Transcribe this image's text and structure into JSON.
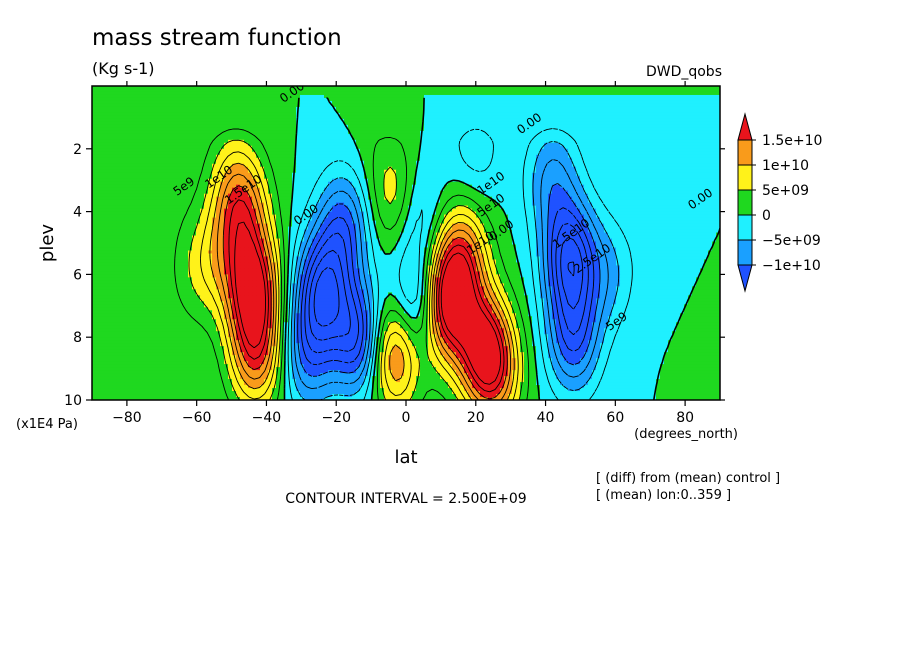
{
  "chart_data": {
    "type": "heatmap",
    "title": "mass stream function",
    "units": "(Kg s-1)",
    "dataset": "DWD_qobs",
    "xlabel": "lat",
    "xunits": "(degrees_north)",
    "ylabel": "plev",
    "yunits": "(x1E4 Pa)",
    "xlim": [
      -90,
      90
    ],
    "ylim": [
      10,
      0
    ],
    "x_ticks": [
      -80,
      -60,
      -40,
      -20,
      0,
      20,
      40,
      60,
      80
    ],
    "x_tick_labels": [
      "−80",
      "−60",
      "−40",
      "−20",
      "0",
      "20",
      "40",
      "60",
      "80"
    ],
    "y_ticks": [
      2,
      4,
      6,
      8,
      10
    ],
    "y_tick_labels": [
      "2",
      "4",
      "6",
      "8",
      "10"
    ],
    "contour_interval_text": "CONTOUR INTERVAL = 2.500E+09",
    "notes": [
      "[ (diff) from (mean) control ]",
      "[ (mean) lon:0..359 ]"
    ],
    "colorbar": {
      "levels": [
        -15000000000.0,
        -10000000000.0,
        -5000000000.0,
        0,
        5000000000.0,
        10000000000.0,
        15000000000.0
      ],
      "labels": [
        "1.5e+10",
        "1e+10",
        "5e+09",
        "0",
        "−5e+09",
        "−1e+10"
      ],
      "colors": [
        "#e8141c",
        "#f99b1b",
        "#fff21a",
        "#1fd81f",
        "#1ff0ff",
        "#1aa0ff",
        "#1f52ff"
      ]
    },
    "contour_labels": [
      {
        "text": "0.00",
        "lat": -32,
        "plev": 0.3
      },
      {
        "text": "0.00",
        "lat": 36,
        "plev": 1.3
      },
      {
        "text": "5e9",
        "lat": -63,
        "plev": 3.3
      },
      {
        "text": "1e10",
        "lat": -53,
        "plev": 3.0
      },
      {
        "text": "1.5e10",
        "lat": -46,
        "plev": 3.4
      },
      {
        "text": "1e10",
        "lat": 25,
        "plev": 3.2
      },
      {
        "text": "5e10",
        "lat": 25,
        "plev": 3.9
      },
      {
        "text": "0.00",
        "lat": -28,
        "plev": 4.2
      },
      {
        "text": "0.00",
        "lat": 28,
        "plev": 4.7
      },
      {
        "text": "1e10",
        "lat": 22,
        "plev": 5.1
      },
      {
        "text": "1.5e10",
        "lat": 48,
        "plev": 4.8
      },
      {
        "text": "2.5e10",
        "lat": 54,
        "plev": 5.6
      },
      {
        "text": "0.00",
        "lat": 85,
        "plev": 3.7
      },
      {
        "text": "5e9",
        "lat": 61,
        "plev": 7.6
      }
    ],
    "cells": {
      "_desc": "field value (Kg s-1) at control points [lat, plev, value]",
      "points": [
        [
          -44,
          6.4,
          20000000000.0
        ],
        [
          -47,
          4.0,
          13000000000.0
        ],
        [
          -43,
          8.5,
          14000000000.0
        ],
        [
          -55,
          5.5,
          6000000000.0
        ],
        [
          -62,
          6.0,
          2500000000.0
        ],
        [
          -50,
          2.8,
          4000000000.0
        ],
        [
          -24,
          6.5,
          -17000000000.0
        ],
        [
          -18,
          4.5,
          -11000000000.0
        ],
        [
          -28,
          8.5,
          -10000000000.0
        ],
        [
          -14,
          8.0,
          -15000000000.0
        ],
        [
          -3,
          8.5,
          15000000000.0
        ],
        [
          -3,
          3.5,
          8000000000.0
        ],
        [
          4,
          7.0,
          -13000000000.0
        ],
        [
          3,
          4.0,
          -6000000000.0
        ],
        [
          11,
          7.0,
          22000000000.0
        ],
        [
          16,
          5.5,
          14000000000.0
        ],
        [
          22,
          8.3,
          18000000000.0
        ],
        [
          26,
          9.2,
          10000000000.0
        ],
        [
          47,
          5.5,
          -17000000000.0
        ],
        [
          48,
          8.0,
          -12000000000.0
        ],
        [
          42,
          3.0,
          -8000000000.0
        ],
        [
          58,
          6.0,
          -5000000000.0
        ],
        [
          20,
          2.0,
          -4000000000.0
        ],
        [
          75,
          5.0,
          -2000000000.0
        ],
        [
          -70,
          3.0,
          1500000000.0
        ],
        [
          -10,
          1.5,
          1000000000.0
        ],
        [
          88,
          8.0,
          1500000000.0
        ]
      ]
    }
  }
}
